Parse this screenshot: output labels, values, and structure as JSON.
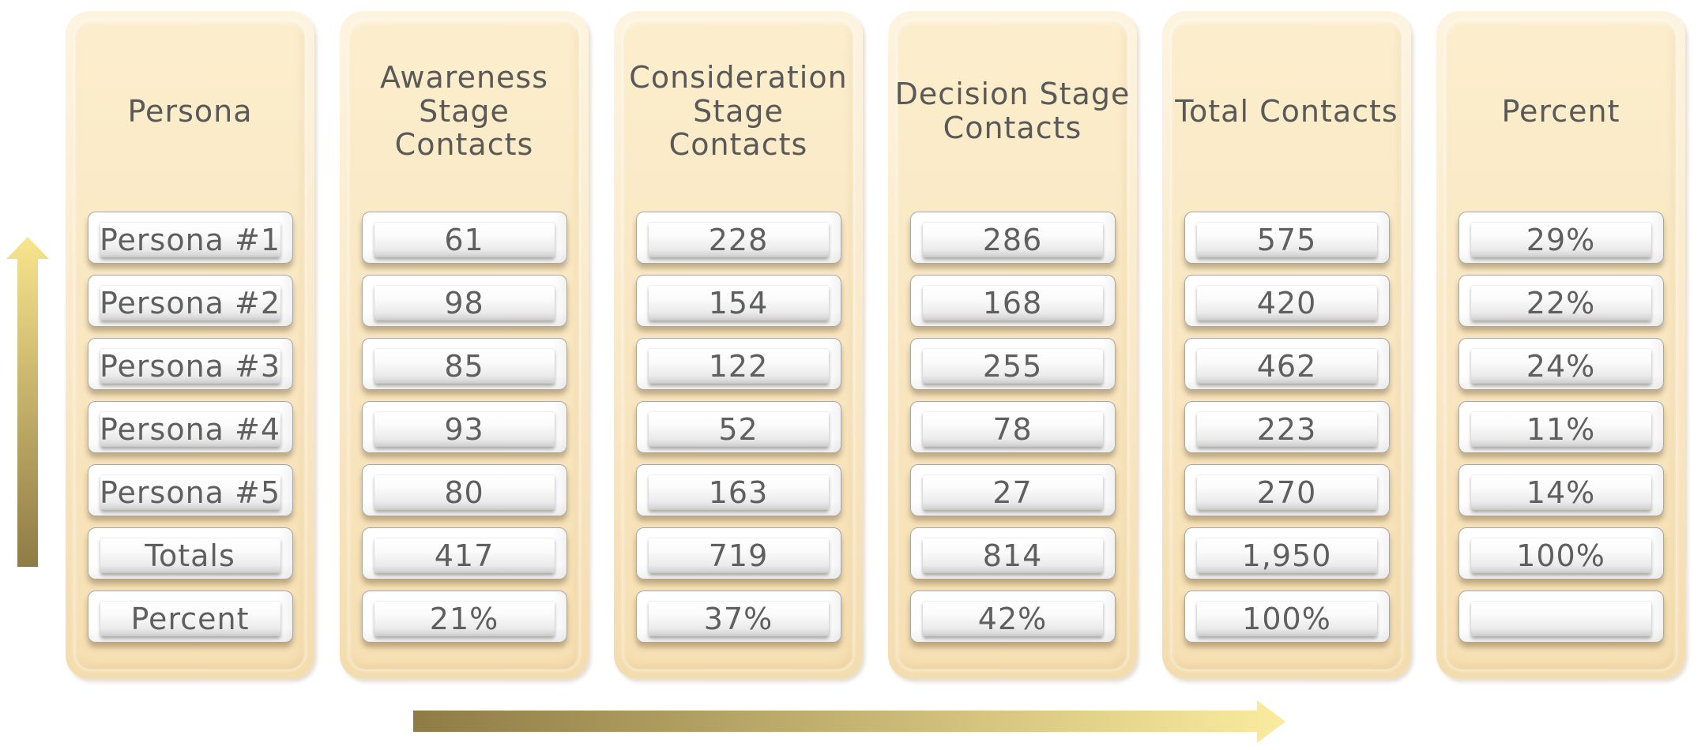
{
  "diagram": {
    "columns": [
      {
        "header": "Persona",
        "cells": [
          "Persona #1",
          "Persona #2",
          "Persona #3",
          "Persona #4",
          "Persona #5",
          "Totals",
          "Percent"
        ]
      },
      {
        "header": "Awareness\nStage\nContacts",
        "cells": [
          "61",
          "98",
          "85",
          "93",
          "80",
          "417",
          "21%"
        ]
      },
      {
        "header": "Consideration\nStage\nContacts",
        "cells": [
          "228",
          "154",
          "122",
          "52",
          "163",
          "719",
          "37%"
        ]
      },
      {
        "header": "Decision Stage\nContacts",
        "cells": [
          "286",
          "168",
          "255",
          "78",
          "27",
          "814",
          "42%"
        ]
      },
      {
        "header": "Total Contacts",
        "cells": [
          "575",
          "420",
          "462",
          "223",
          "270",
          "1,950",
          "100%"
        ]
      },
      {
        "header": "Percent",
        "cells": [
          "29%",
          "22%",
          "24%",
          "11%",
          "14%",
          "100%",
          ""
        ]
      }
    ],
    "arrows": {
      "vertical_direction": "up",
      "horizontal_direction": "right",
      "gradient_dark": "#8F7B45",
      "gradient_light": "#F8E58D"
    },
    "colors": {
      "card_fill": "#FAE6BF",
      "card_highlight": "#FDF3DD",
      "text": "#595959",
      "cell_fill": "#FFFFFF"
    }
  }
}
